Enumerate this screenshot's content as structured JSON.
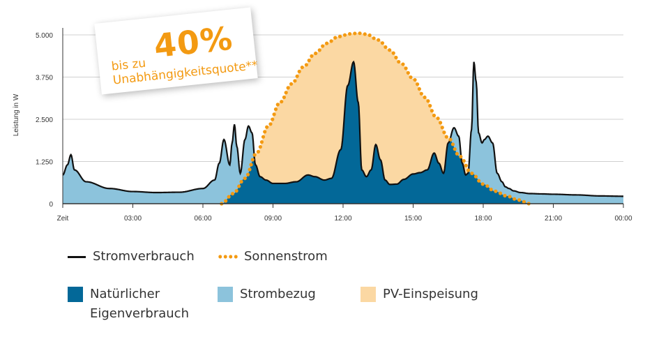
{
  "chart_data": {
    "type": "area",
    "title": "",
    "xlabel": "Zeit",
    "ylabel": "Leistung in W",
    "ylim": [
      0,
      5000
    ],
    "yticks": [
      0,
      1250,
      2500,
      3750,
      5000
    ],
    "ytick_labels": [
      "0",
      "1.250",
      "2.500",
      "3.750",
      "5.000"
    ],
    "xlim_hours": [
      0,
      24
    ],
    "xtick_labels": [
      "Zeit",
      "03:00",
      "06:00",
      "09:00",
      "12:00",
      "15:00",
      "18:00",
      "21:00",
      "00:00"
    ],
    "series": [
      {
        "name": "Stromverbrauch",
        "style": "solid-line",
        "x": [
          0,
          0.2,
          0.35,
          0.5,
          1.0,
          2.0,
          3.0,
          4.0,
          5.0,
          6.0,
          6.5,
          6.7,
          6.9,
          7.15,
          7.25,
          7.35,
          7.45,
          7.6,
          7.8,
          7.95,
          8.1,
          8.25,
          8.45,
          8.7,
          9.0,
          9.5,
          10.0,
          10.5,
          10.8,
          11.2,
          11.5,
          11.9,
          12.2,
          12.45,
          12.65,
          12.8,
          13.0,
          13.2,
          13.4,
          13.6,
          13.8,
          14.0,
          14.3,
          14.6,
          15.0,
          15.3,
          15.6,
          15.9,
          16.1,
          16.3,
          16.5,
          16.75,
          16.95,
          17.1,
          17.25,
          17.35,
          17.5,
          17.6,
          17.7,
          17.8,
          17.95,
          18.05,
          18.2,
          18.4,
          18.6,
          18.8,
          18.95,
          19.1,
          19.3,
          19.6,
          20.0,
          20.5,
          21.0,
          22.0,
          23.0,
          24.0
        ],
        "y": [
          850,
          1150,
          1450,
          1000,
          650,
          450,
          360,
          330,
          340,
          450,
          700,
          1200,
          1900,
          1150,
          1800,
          2350,
          1700,
          900,
          1900,
          2300,
          2100,
          1150,
          800,
          700,
          600,
          600,
          650,
          850,
          800,
          700,
          750,
          1600,
          3500,
          4200,
          3000,
          1000,
          800,
          1000,
          1750,
          1300,
          700,
          570,
          580,
          720,
          880,
          920,
          1000,
          1500,
          1200,
          900,
          1800,
          2250,
          2000,
          1200,
          850,
          900,
          2200,
          4200,
          3600,
          2100,
          1800,
          1900,
          2000,
          1800,
          900,
          650,
          500,
          450,
          380,
          330,
          300,
          290,
          280,
          260,
          230,
          220
        ]
      },
      {
        "name": "Sonnenstrom",
        "style": "dotted-line",
        "x": [
          6.8,
          7.3,
          7.8,
          8.3,
          8.8,
          9.3,
          9.8,
          10.3,
          10.8,
          11.3,
          11.8,
          12.3,
          12.65,
          13.0,
          13.5,
          14.0,
          14.5,
          15.0,
          15.5,
          16.0,
          16.5,
          17.0,
          17.5,
          18.0,
          18.5,
          19.0,
          19.5,
          20.0
        ],
        "y": [
          0,
          300,
          750,
          1500,
          2300,
          3000,
          3550,
          4050,
          4450,
          4750,
          4950,
          5030,
          5050,
          5020,
          4850,
          4550,
          4150,
          3700,
          3150,
          2550,
          1950,
          1400,
          900,
          580,
          370,
          230,
          110,
          0
        ]
      }
    ],
    "areas": [
      {
        "name": "Natürlicher Eigenverbrauch",
        "color": "#036898",
        "definition": "min(Stromverbrauch, Sonnenstrom)"
      },
      {
        "name": "Strombezug",
        "color": "#8cc3dc",
        "definition": "Stromverbrauch above Sonnenstrom"
      },
      {
        "name": "PV-Einspeisung",
        "color": "#fbd8a3",
        "definition": "Sonnenstrom above Stromverbrauch"
      }
    ],
    "legend": {
      "position": "bottom",
      "entries": [
        {
          "label": "Stromverbrauch",
          "type": "line"
        },
        {
          "label": "Sonnenstrom",
          "type": "dots"
        },
        {
          "label": "Natürlicher\nEigenverbrauch",
          "line1": "Natürlicher",
          "line2": "Eigenverbrauch",
          "type": "swatch",
          "color": "#036898"
        },
        {
          "label": "Strombezug",
          "type": "swatch",
          "color": "#8cc3dc"
        },
        {
          "label": "PV-Einspeisung",
          "type": "swatch",
          "color": "#fbd8a3"
        }
      ]
    },
    "annotation": {
      "prefix": "bis zu",
      "value": "40%",
      "suffix": "Unabhängigkeitsquote**",
      "color": "#f39a12"
    },
    "grid": true
  },
  "colors": {
    "consumption_line": "#111111",
    "solar_dots": "#f39a12",
    "grid": "#d0d0d0",
    "axis": "#333333"
  }
}
